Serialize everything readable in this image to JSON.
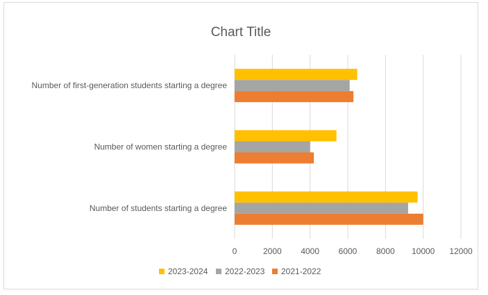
{
  "chart_data": {
    "type": "bar",
    "orientation": "horizontal",
    "title": "Chart Title",
    "xlabel": "",
    "ylabel": "",
    "categories": [
      "Number of students starting a degree",
      "Number of women starting a degree",
      "Number of first-generation students starting a degree"
    ],
    "series": [
      {
        "name": "2021-2022",
        "color": "#ED7D31",
        "values": [
          10000,
          4200,
          6300
        ]
      },
      {
        "name": "2022-2023",
        "color": "#A5A5A5",
        "values": [
          9200,
          4000,
          6100
        ]
      },
      {
        "name": "2023-2024",
        "color": "#FFC000",
        "values": [
          9700,
          5400,
          6500
        ]
      }
    ],
    "xlim": [
      0,
      12000
    ],
    "x_ticks": [
      "0",
      "2000",
      "4000",
      "6000",
      "8000",
      "10000",
      "12000"
    ],
    "grid": "vertical",
    "legend": {
      "placement": "bottom",
      "order": [
        "2023-2024",
        "2022-2023",
        "2021-2022"
      ]
    }
  }
}
